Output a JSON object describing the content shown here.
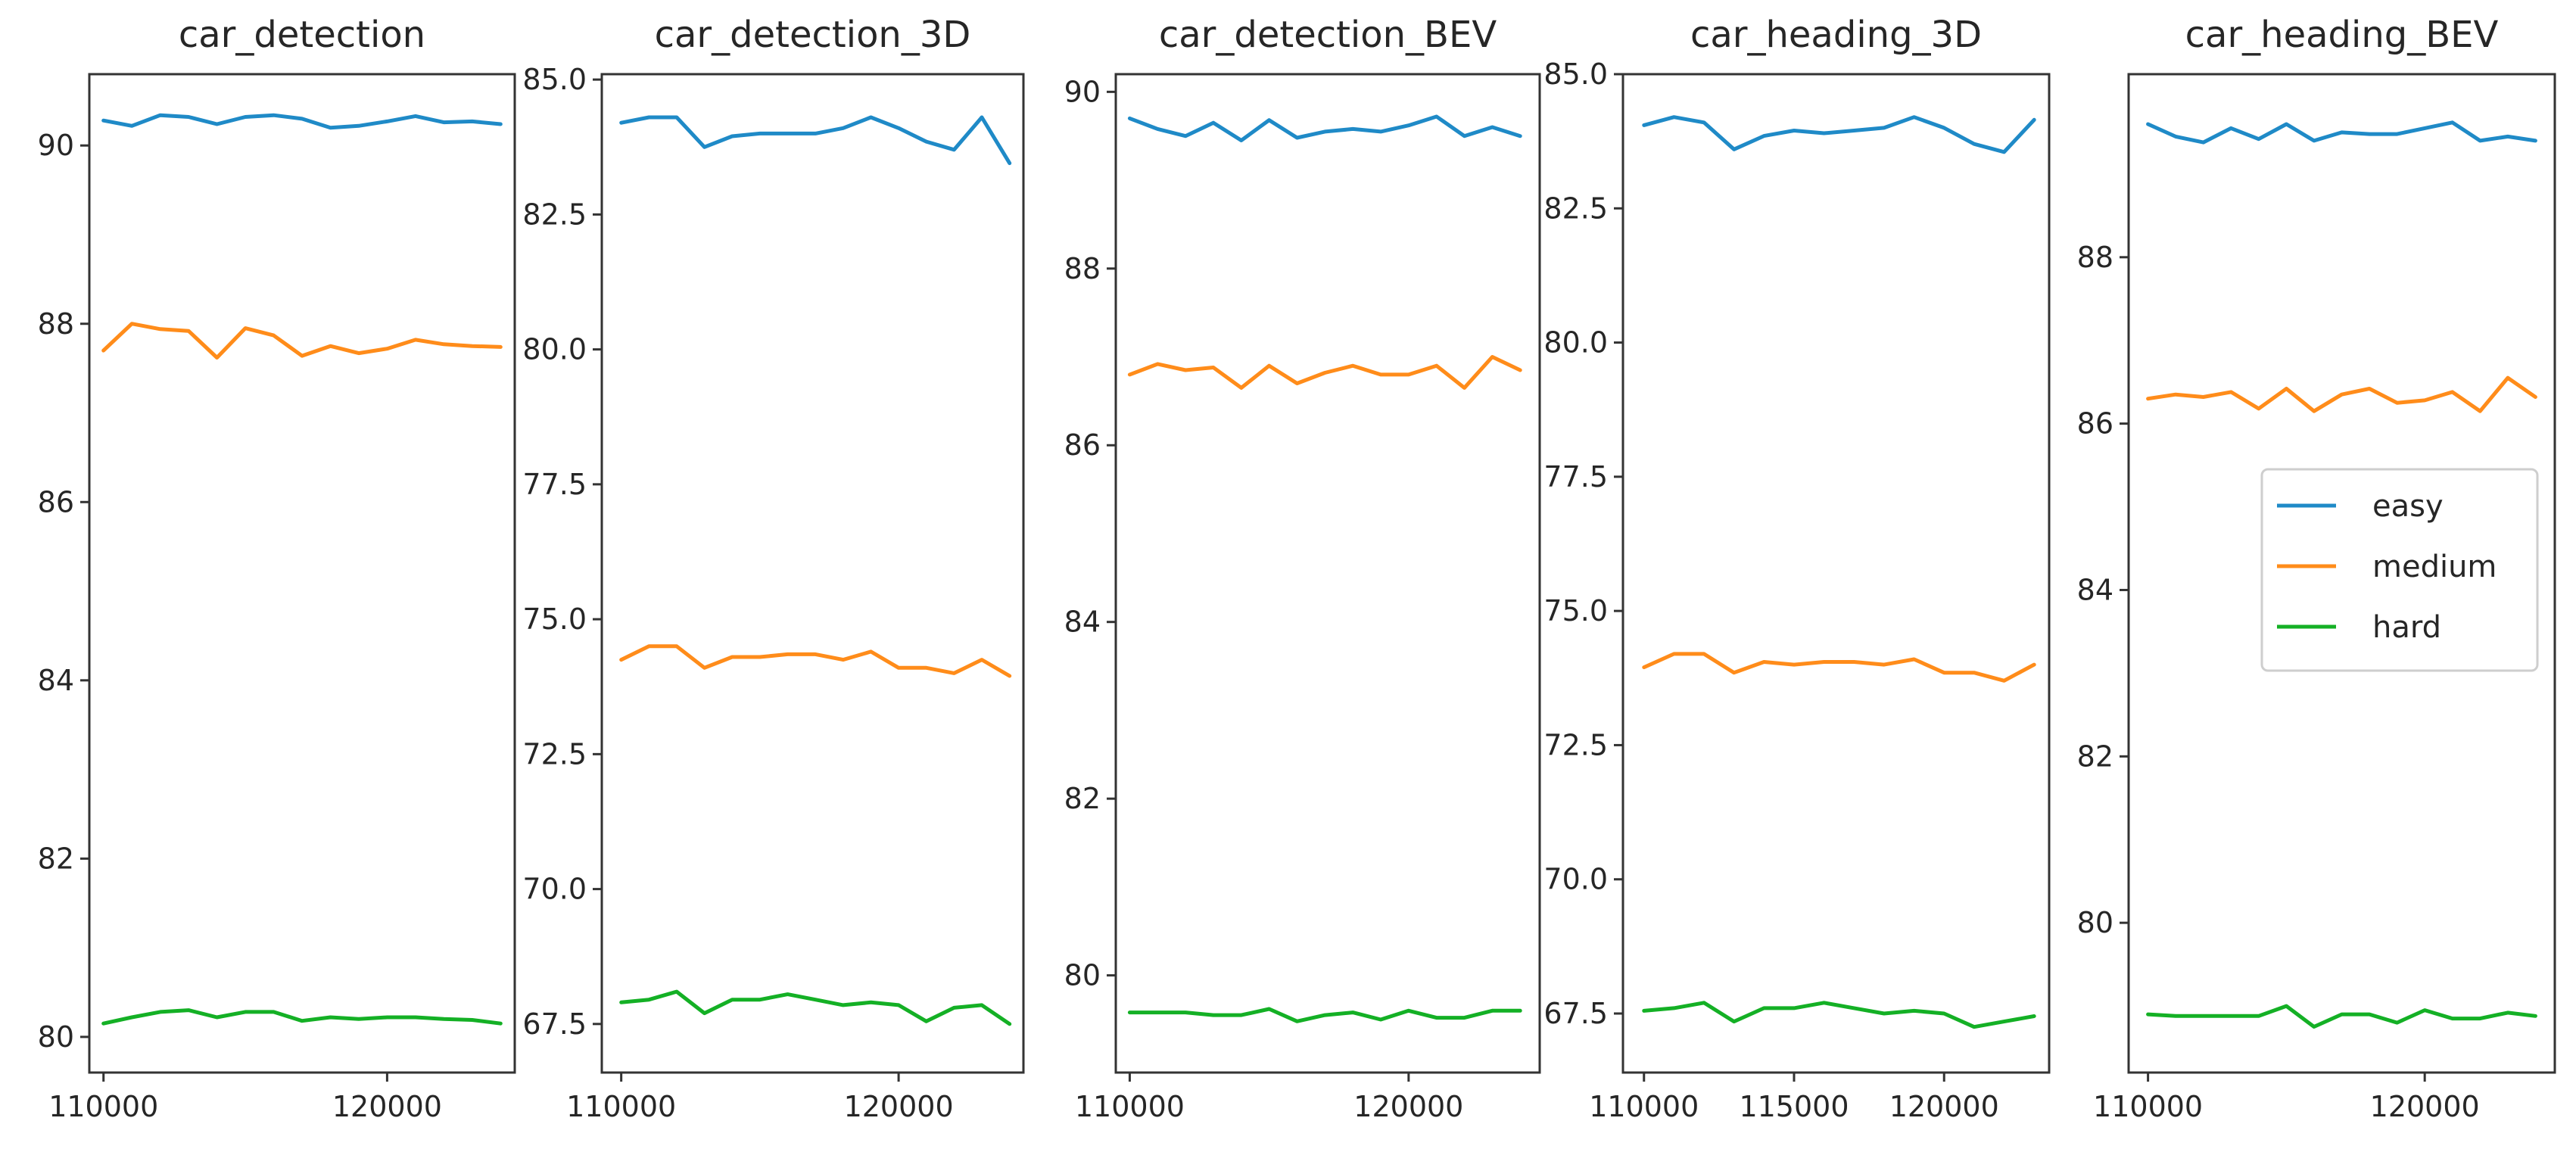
{
  "colors": {
    "easy": "#1f8ac7",
    "medium": "#ff8c1a",
    "hard": "#14b025",
    "frame": "#333333"
  },
  "legend": {
    "placement": "right",
    "entries": [
      "easy",
      "medium",
      "hard"
    ]
  },
  "chart_data": [
    {
      "type": "line",
      "title": "car_detection",
      "x": [
        110000,
        111000,
        112000,
        113000,
        114000,
        115000,
        116000,
        117000,
        118000,
        119000,
        120000,
        121000,
        122000,
        123000,
        124000
      ],
      "xlim": [
        109500,
        124500
      ],
      "ylim": [
        79.6,
        90.8
      ],
      "xticks": [
        110000,
        120000
      ],
      "xtick_labels": [
        "110000",
        "120000"
      ],
      "yticks": [
        80,
        82,
        84,
        86,
        88,
        90
      ],
      "ytick_labels": [
        "80",
        "82",
        "84",
        "86",
        "88",
        "90"
      ],
      "series": [
        {
          "name": "easy",
          "values": [
            90.28,
            90.22,
            90.34,
            90.32,
            90.24,
            90.32,
            90.34,
            90.3,
            90.2,
            90.22,
            90.27,
            90.33,
            90.26,
            90.27,
            90.24
          ]
        },
        {
          "name": "medium",
          "values": [
            87.7,
            88.0,
            87.94,
            87.92,
            87.62,
            87.95,
            87.87,
            87.64,
            87.75,
            87.67,
            87.72,
            87.82,
            87.77,
            87.75,
            87.74
          ]
        },
        {
          "name": "hard",
          "values": [
            80.15,
            80.22,
            80.28,
            80.3,
            80.22,
            80.28,
            80.28,
            80.18,
            80.22,
            80.2,
            80.22,
            80.22,
            80.2,
            80.19,
            80.15
          ]
        }
      ]
    },
    {
      "type": "line",
      "title": "car_detection_3D",
      "x": [
        110000,
        111000,
        112000,
        113000,
        114000,
        115000,
        116000,
        117000,
        118000,
        119000,
        120000,
        121000,
        122000,
        123000,
        124000
      ],
      "xlim": [
        109300,
        124500
      ],
      "ylim": [
        66.6,
        85.1
      ],
      "xticks": [
        110000,
        120000
      ],
      "xtick_labels": [
        "110000",
        "120000"
      ],
      "yticks": [
        67.5,
        70.0,
        72.5,
        75.0,
        77.5,
        80.0,
        82.5,
        85.0
      ],
      "ytick_labels": [
        "67.5",
        "70.0",
        "72.5",
        "75.0",
        "77.5",
        "80.0",
        "82.5",
        "85.0"
      ],
      "series": [
        {
          "name": "easy",
          "values": [
            84.2,
            84.3,
            84.3,
            83.75,
            83.95,
            84.0,
            84.0,
            84.0,
            84.1,
            84.3,
            84.1,
            83.85,
            83.7,
            84.3,
            83.45
          ]
        },
        {
          "name": "medium",
          "values": [
            74.25,
            74.5,
            74.5,
            74.1,
            74.3,
            74.3,
            74.35,
            74.35,
            74.25,
            74.4,
            74.1,
            74.1,
            74.0,
            74.25,
            73.95
          ]
        },
        {
          "name": "hard",
          "values": [
            67.9,
            67.95,
            68.1,
            67.7,
            67.95,
            67.95,
            68.05,
            67.95,
            67.85,
            67.9,
            67.85,
            67.55,
            67.8,
            67.85,
            67.5
          ]
        }
      ]
    },
    {
      "type": "line",
      "title": "car_detection_BEV",
      "x": [
        110000,
        111000,
        112000,
        113000,
        114000,
        115000,
        116000,
        117000,
        118000,
        119000,
        120000,
        121000,
        122000,
        123000,
        124000
      ],
      "xlim": [
        109500,
        124700
      ],
      "ylim": [
        78.9,
        90.2
      ],
      "xticks": [
        110000,
        120000
      ],
      "xtick_labels": [
        "110000",
        "120000"
      ],
      "yticks": [
        80,
        82,
        84,
        86,
        88,
        90
      ],
      "ytick_labels": [
        "80",
        "82",
        "84",
        "86",
        "88",
        "90"
      ],
      "series": [
        {
          "name": "easy",
          "values": [
            89.7,
            89.58,
            89.5,
            89.65,
            89.45,
            89.68,
            89.48,
            89.55,
            89.58,
            89.55,
            89.62,
            89.72,
            89.5,
            89.6,
            89.5
          ]
        },
        {
          "name": "medium",
          "values": [
            86.8,
            86.92,
            86.85,
            86.88,
            86.65,
            86.9,
            86.7,
            86.82,
            86.9,
            86.8,
            86.8,
            86.9,
            86.65,
            87.0,
            86.85
          ]
        },
        {
          "name": "hard",
          "values": [
            79.58,
            79.58,
            79.58,
            79.55,
            79.55,
            79.62,
            79.48,
            79.55,
            79.58,
            79.5,
            79.6,
            79.52,
            79.52,
            79.6,
            79.6
          ]
        }
      ]
    },
    {
      "type": "line",
      "title": "car_heading_3D",
      "x": [
        110000,
        111000,
        112000,
        113000,
        114000,
        115000,
        116000,
        117000,
        118000,
        119000,
        120000,
        121000,
        122000,
        123000
      ],
      "xlim": [
        109300,
        123500
      ],
      "ylim": [
        66.4,
        85.0
      ],
      "xticks": [
        110000,
        115000,
        120000
      ],
      "xtick_labels": [
        "110000",
        "115000",
        "120000"
      ],
      "yticks": [
        67.5,
        70.0,
        72.5,
        75.0,
        77.5,
        80.0,
        82.5,
        85.0
      ],
      "ytick_labels": [
        "67.5",
        "70.0",
        "72.5",
        "75.0",
        "77.5",
        "80.0",
        "82.5",
        "85.0"
      ],
      "series": [
        {
          "name": "easy",
          "values": [
            84.05,
            84.2,
            84.1,
            83.6,
            83.85,
            83.95,
            83.9,
            83.95,
            84.0,
            84.2,
            84.0,
            83.7,
            83.55,
            84.15
          ]
        },
        {
          "name": "medium",
          "values": [
            73.95,
            74.2,
            74.2,
            73.85,
            74.05,
            74.0,
            74.05,
            74.05,
            74.0,
            74.1,
            73.85,
            73.85,
            73.7,
            74.0
          ]
        },
        {
          "name": "hard",
          "values": [
            67.55,
            67.6,
            67.7,
            67.35,
            67.6,
            67.6,
            67.7,
            67.6,
            67.5,
            67.55,
            67.5,
            67.25,
            67.35,
            67.45
          ]
        }
      ]
    },
    {
      "type": "line",
      "title": "car_heading_BEV",
      "x": [
        110000,
        111000,
        112000,
        113000,
        114000,
        115000,
        116000,
        117000,
        118000,
        119000,
        120000,
        121000,
        122000,
        123000,
        124000
      ],
      "xlim": [
        109300,
        124700
      ],
      "ylim": [
        78.2,
        90.2
      ],
      "xticks": [
        110000,
        120000
      ],
      "xtick_labels": [
        "110000",
        "120000"
      ],
      "yticks": [
        80,
        82,
        84,
        86,
        88
      ],
      "ytick_labels": [
        "80",
        "82",
        "84",
        "86",
        "88"
      ],
      "series": [
        {
          "name": "easy",
          "values": [
            89.6,
            89.45,
            89.38,
            89.55,
            89.42,
            89.6,
            89.4,
            89.5,
            89.48,
            89.48,
            89.55,
            89.62,
            89.4,
            89.45,
            89.4
          ]
        },
        {
          "name": "medium",
          "values": [
            86.3,
            86.35,
            86.32,
            86.38,
            86.18,
            86.42,
            86.15,
            86.35,
            86.42,
            86.25,
            86.28,
            86.38,
            86.15,
            86.55,
            86.32
          ]
        },
        {
          "name": "hard",
          "values": [
            78.9,
            78.88,
            78.88,
            78.88,
            78.88,
            79.0,
            78.75,
            78.9,
            78.9,
            78.8,
            78.95,
            78.85,
            78.85,
            78.92,
            78.88
          ]
        }
      ]
    }
  ]
}
